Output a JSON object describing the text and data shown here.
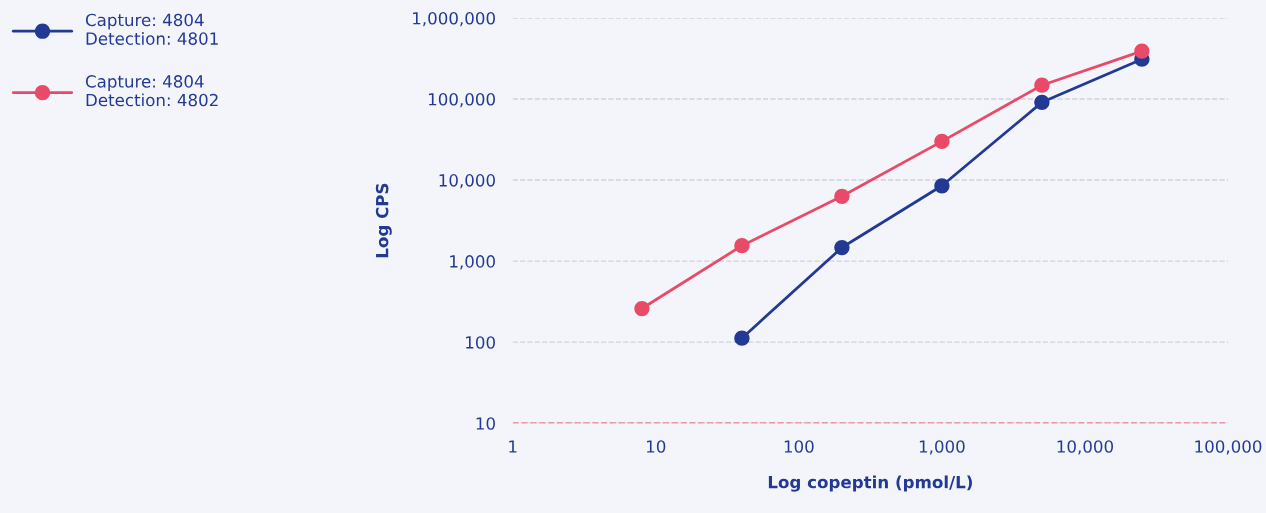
{
  "chart_data": {
    "type": "line",
    "xlabel": "Log copeptin (pmol/L)",
    "ylabel": "Log CPS",
    "log": "xy",
    "x": [
      8,
      40,
      200,
      1000,
      5000,
      25000
    ],
    "series": [
      {
        "name": "Capture: 4804\nDetection: 4801",
        "color": "#233a95",
        "values": [
          null,
          112,
          1470,
          8500,
          91000,
          310000
        ]
      },
      {
        "name": "Capture: 4804\nDetection: 4802",
        "color": "#e84a67",
        "values": [
          260,
          1550,
          6300,
          30000,
          148000,
          390000
        ]
      }
    ],
    "xlim": [
      1,
      100000
    ],
    "xticks": [
      {
        "value": 1,
        "label": "1"
      },
      {
        "value": 10,
        "label": "10"
      },
      {
        "value": 100,
        "label": "100"
      },
      {
        "value": 1000,
        "label": "1,000"
      },
      {
        "value": 10000,
        "label": "10,000"
      },
      {
        "value": 100000,
        "label": "100,000"
      }
    ],
    "ylim": [
      10,
      1000000
    ],
    "yticks": [
      {
        "value": 10,
        "label": "10"
      },
      {
        "value": 100,
        "label": "100"
      },
      {
        "value": 1000,
        "label": "1,000"
      },
      {
        "value": 10000,
        "label": "10,000"
      },
      {
        "value": 100000,
        "label": "100,000"
      },
      {
        "value": 1000000,
        "label": "1,000,000"
      }
    ],
    "ref_lines": [
      {
        "axis": "y",
        "value": 10,
        "label": null,
        "color": "#e84a67",
        "line_style": "dashed"
      }
    ],
    "grid": "y",
    "legend": "top left",
    "marker": "circle",
    "line_style": "solid"
  }
}
